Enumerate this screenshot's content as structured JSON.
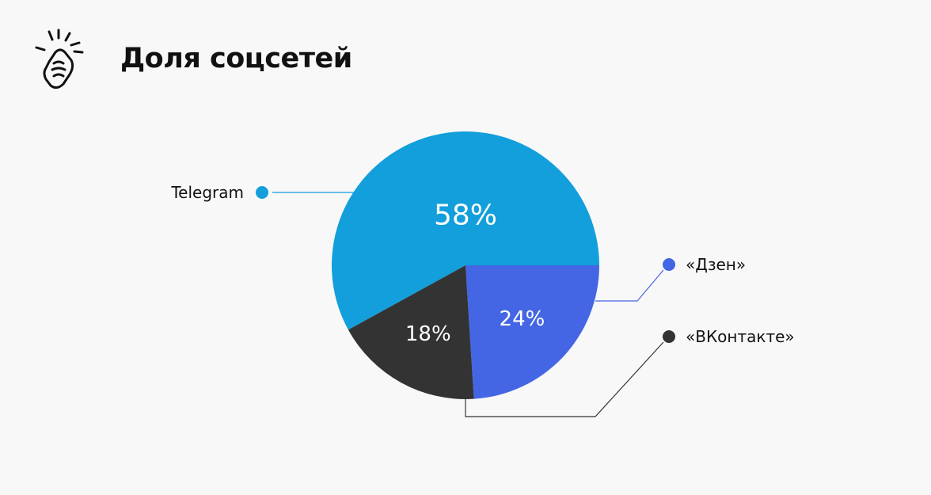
{
  "page": {
    "title": "Доля соцсетей",
    "logo_icon": "hand-with-sparks-icon"
  },
  "chart_data": {
    "type": "pie",
    "title": "Доля соцсетей",
    "slices": [
      {
        "label": "Telegram",
        "value": 58,
        "display": "58%",
        "color": "#129fdb"
      },
      {
        "label": "«Дзен»",
        "value": 24,
        "display": "24%",
        "color": "#4466e4"
      },
      {
        "label": "«ВКонтакте»",
        "value": 18,
        "display": "18%",
        "color": "#333333"
      }
    ]
  }
}
